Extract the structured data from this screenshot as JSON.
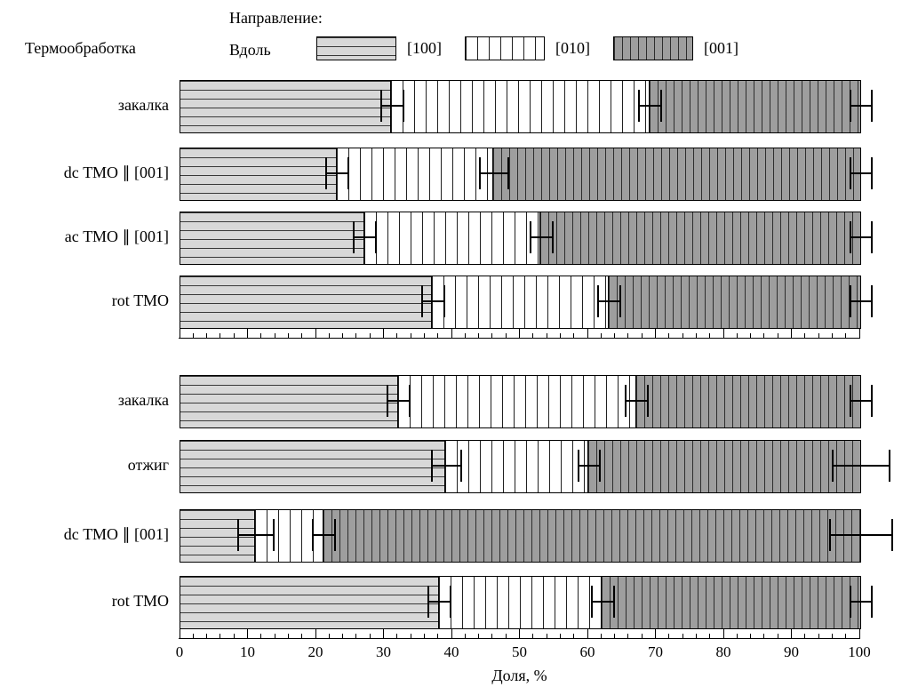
{
  "header": {
    "left_label": "Термообработка",
    "legend_title": "Направление:",
    "legend_subtitle": "Вдоль"
  },
  "legend": {
    "items": [
      {
        "label": "[100]",
        "key": "s100"
      },
      {
        "label": "[010]",
        "key": "s010"
      },
      {
        "label": "[001]",
        "key": "s001"
      }
    ]
  },
  "axis": {
    "label": "Доля, %",
    "ticks": [
      0,
      10,
      20,
      30,
      40,
      50,
      60,
      70,
      80,
      90,
      100
    ],
    "minor_step": 2,
    "range": [
      0,
      100
    ]
  },
  "colors": {
    "segment_100_fill": "#d8d8d8",
    "segment_010_fill": "#ffffff",
    "segment_001_fill": "#9e9e9e",
    "hatch_line": "#222222",
    "outline": "#000000"
  },
  "chart_data": {
    "type": "bar",
    "orientation": "horizontal-stacked",
    "series_names": [
      "[100]",
      "[010]",
      "[001]"
    ],
    "xlabel": "Доля, %",
    "xlim": [
      0,
      100
    ],
    "grid": false,
    "legend_position": "top",
    "groups": [
      {
        "rows": [
          {
            "label": "закалка",
            "values": [
              31,
              38,
              31
            ],
            "errors": [
              1.5,
              1.5,
              1.5
            ]
          },
          {
            "label": "dc ТМО ∥ [001]",
            "values": [
              23,
              23,
              54
            ],
            "errors": [
              1.5,
              2.0,
              1.5
            ]
          },
          {
            "label": "ac ТМО ∥ [001]",
            "values": [
              27,
              26,
              47
            ],
            "errors": [
              1.5,
              1.5,
              1.5
            ]
          },
          {
            "label": "rot ТМО",
            "values": [
              37,
              26,
              37
            ],
            "errors": [
              1.5,
              1.5,
              1.5
            ]
          }
        ]
      },
      {
        "rows": [
          {
            "label": "закалка",
            "values": [
              32,
              35,
              33
            ],
            "errors": [
              1.5,
              1.5,
              1.5
            ]
          },
          {
            "label": "отжиг",
            "values": [
              39,
              21,
              40
            ],
            "errors": [
              2.0,
              1.5,
              4.0
            ]
          },
          {
            "label": "dc ТМО ∥ [001]",
            "values": [
              11,
              10,
              79
            ],
            "errors": [
              2.5,
              1.5,
              4.5
            ]
          },
          {
            "label": "rot ТМО",
            "values": [
              38,
              24,
              38
            ],
            "errors": [
              1.5,
              1.5,
              1.5
            ]
          }
        ]
      }
    ]
  }
}
